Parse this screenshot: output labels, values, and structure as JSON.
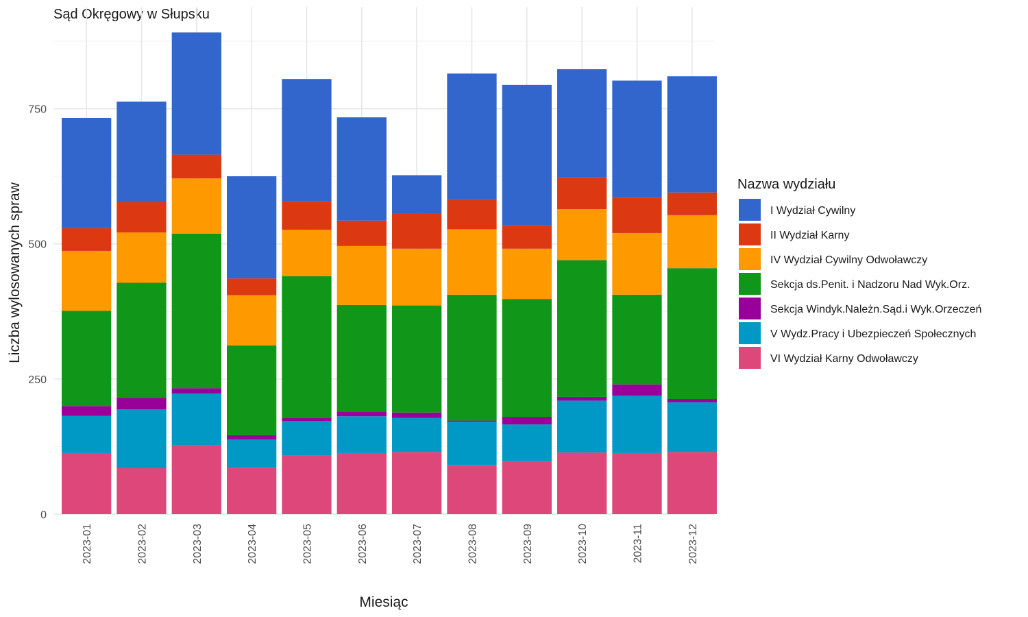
{
  "chart_data": {
    "type": "bar",
    "stacked": true,
    "title": "Sąd Okręgowy w Słupsku",
    "xlabel": "Miesiąc",
    "ylabel": "Liczba wylosowanych spraw",
    "ylim": [
      0,
      900
    ],
    "yticks": [
      0,
      250,
      500,
      750
    ],
    "grid": true,
    "legend_title": "Nazwa wydziału",
    "legend_position": "right",
    "categories": [
      "2023-01",
      "2023-02",
      "2023-03",
      "2023-04",
      "2023-05",
      "2023-06",
      "2023-07",
      "2023-08",
      "2023-09",
      "2023-10",
      "2023-11",
      "2023-12"
    ],
    "series": [
      {
        "name": "VI Wydział Karny Odwoławczy",
        "color": "#DE477A",
        "values": [
          113,
          85,
          128,
          86,
          108,
          113,
          115,
          91,
          98,
          114,
          113,
          115
        ]
      },
      {
        "name": "V Wydz.Pracy i Ubezpieczeń Społecznych",
        "color": "#0099C6",
        "values": [
          69,
          109,
          95,
          52,
          64,
          68,
          63,
          80,
          68,
          96,
          106,
          92
        ]
      },
      {
        "name": "Sekcja Windyk.Należn.Sąd.i Wyk.Orzeczeń",
        "color": "#990099",
        "values": [
          18,
          21,
          10,
          8,
          6,
          9,
          10,
          2,
          14,
          7,
          21,
          6
        ]
      },
      {
        "name": "Sekcja ds.Penit. i Nadzoru Nad Wyk.Orz.",
        "color": "#109618",
        "values": [
          176,
          213,
          286,
          166,
          262,
          197,
          198,
          233,
          218,
          253,
          166,
          242
        ]
      },
      {
        "name": "IV Wydział Cywilny Odwoławczy",
        "color": "#FF9900",
        "values": [
          111,
          93,
          102,
          93,
          86,
          109,
          105,
          121,
          93,
          94,
          114,
          98
        ]
      },
      {
        "name": "II Wydział Karny",
        "color": "#DC3912",
        "values": [
          42,
          56,
          44,
          31,
          53,
          47,
          65,
          54,
          43,
          59,
          65,
          42
        ]
      },
      {
        "name": "I Wydział Cywilny",
        "color": "#3366CC",
        "values": [
          204,
          186,
          226,
          189,
          226,
          191,
          71,
          234,
          260,
          200,
          217,
          215
        ]
      }
    ],
    "legend_order": [
      "I Wydział Cywilny",
      "II Wydział Karny",
      "IV Wydział Cywilny Odwoławczy",
      "Sekcja ds.Penit. i Nadzoru Nad Wyk.Orz.",
      "Sekcja Windyk.Należn.Sąd.i Wyk.Orzeczeń",
      "V Wydz.Pracy i Ubezpieczeń Społecznych",
      "VI Wydział Karny Odwoławczy"
    ]
  }
}
